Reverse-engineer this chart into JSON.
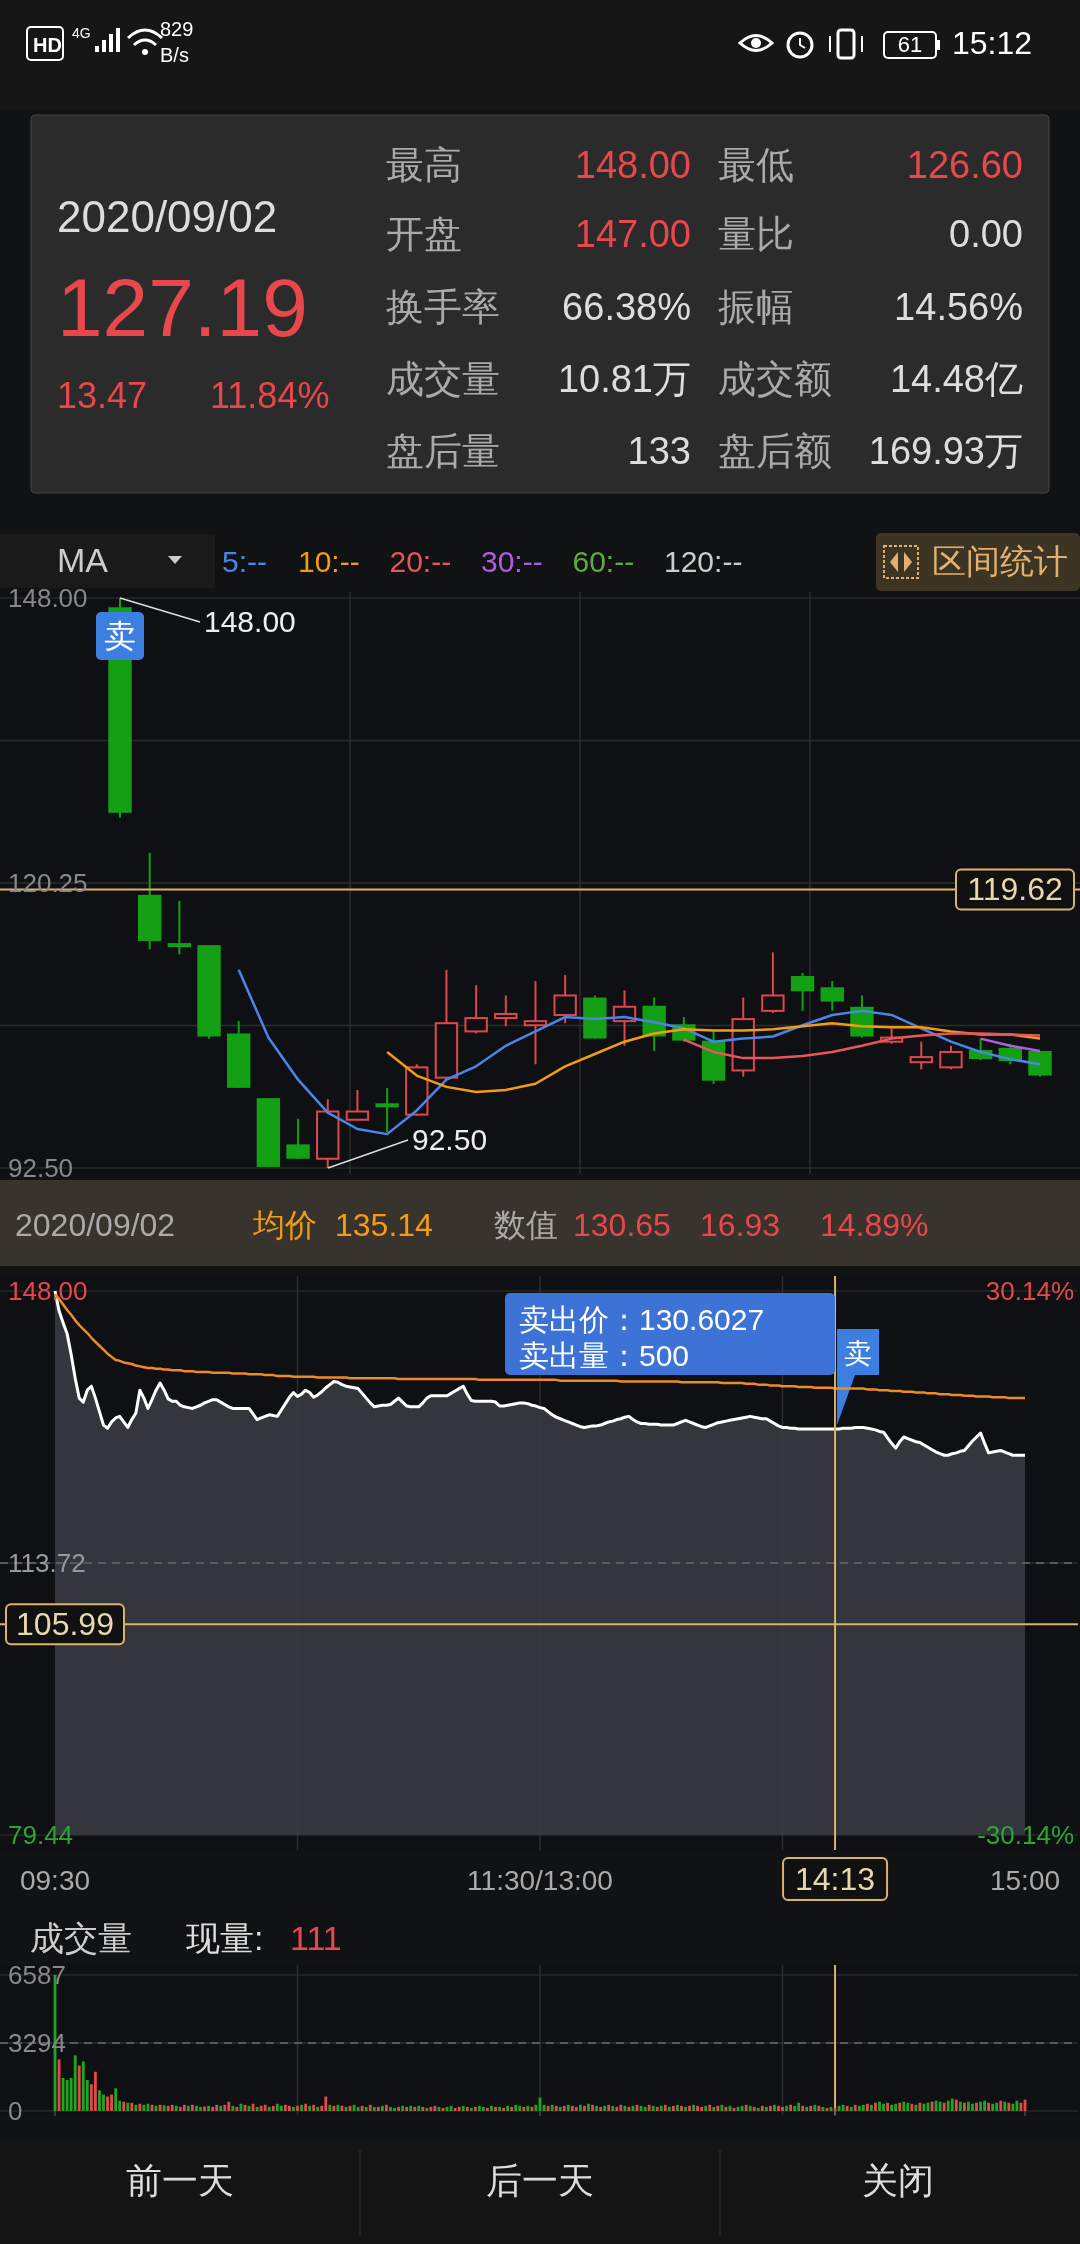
{
  "chart_data": [
    {
      "type": "other",
      "annotations": [
        "HD",
        "4G",
        "829",
        "B/s",
        "15:12",
        "61",
        "2020/09/02",
        "127.19",
        "13.47",
        "11.84%",
        "最高",
        "148.00",
        "最低",
        "126.60",
        "开盘",
        "147.00",
        "量比",
        "0.00",
        "换手率",
        "66.38%",
        "振幅",
        "14.56%",
        "成交量",
        "10.81万",
        "成交额",
        "14.48亿",
        "盘后量",
        "133",
        "盘后额",
        "169.93万",
        "前一天",
        "后一天",
        "关闭"
      ]
    },
    {
      "type": "candlestick",
      "legend_title": "MA",
      "legend": "top",
      "grid": true,
      "categories": [
        null,
        null,
        null,
        null,
        null,
        null,
        null,
        null,
        null,
        null,
        null,
        null,
        null,
        null,
        null,
        null,
        null,
        null,
        null,
        null,
        null,
        null,
        null,
        null,
        null,
        null,
        null,
        null,
        null,
        null,
        null,
        null
      ],
      "ohlc": [
        [
          147,
          148,
          126.6,
          127.19
        ],
        [
          119.0,
          123.2,
          113.8,
          114.7
        ],
        [
          114.3,
          118.5,
          113.3,
          114.1
        ],
        [
          114.1,
          114.1,
          105.1,
          105.4
        ],
        [
          105.5,
          106.8,
          100.3,
          100.4
        ],
        [
          99.2,
          99.2,
          92.6,
          92.7
        ],
        [
          94.7,
          97.3,
          93.4,
          93.5
        ],
        [
          93.4,
          99.2,
          92.5,
          98.0
        ],
        [
          97.2,
          100.1,
          97.1,
          98.0
        ],
        [
          98.7,
          100.3,
          96.0,
          98.5
        ],
        [
          97.7,
          102.6,
          97.6,
          102.3
        ],
        [
          101.3,
          111.8,
          101.1,
          106.6
        ],
        [
          105.8,
          110.3,
          105.6,
          107.1
        ],
        [
          107.1,
          109.3,
          106.3,
          107.5
        ],
        [
          106.4,
          110.7,
          102.6,
          106.8
        ],
        [
          107.4,
          111.3,
          106.6,
          109.3
        ],
        [
          109.0,
          109.3,
          105.1,
          105.2
        ],
        [
          106.8,
          109.8,
          104.4,
          108.2
        ],
        [
          108.2,
          109.1,
          103.9,
          105.4
        ],
        [
          106.4,
          107.2,
          104.8,
          105.0
        ],
        [
          104.8,
          105.8,
          100.7,
          101.1
        ],
        [
          102.0,
          109.1,
          101.4,
          107.0
        ],
        [
          107.8,
          113.5,
          107.6,
          109.3
        ],
        [
          111.1,
          111.5,
          107.8,
          109.8
        ],
        [
          110.0,
          110.7,
          107.8,
          108.8
        ],
        [
          108.1,
          109.3,
          105.2,
          105.4
        ],
        [
          104.8,
          106.1,
          104.6,
          105.2
        ],
        [
          102.8,
          104.8,
          102.1,
          103.3
        ],
        [
          102.3,
          104.4,
          102.1,
          103.8
        ],
        [
          103.9,
          105.1,
          103.0,
          103.2
        ],
        [
          104.1,
          104.6,
          102.6,
          103.0
        ],
        [
          103.8,
          103.9,
          101.4,
          101.6
        ]
      ],
      "colors": [
        "#14a014",
        "#14a014",
        "#14a014",
        "#14a014",
        "#14a014",
        "#14a014",
        "#14a014",
        "#e0474c",
        "#e0474c",
        "#14a014",
        "#e0474c",
        "#e0474c",
        "#e0474c",
        "#e0474c",
        "#e0474c",
        "#e0474c",
        "#14a014",
        "#e0474c",
        "#14a014",
        "#14a014",
        "#14a014",
        "#e0474c",
        "#e0474c",
        "#14a014",
        "#14a014",
        "#14a014",
        "#e0474c",
        "#e0474c",
        "#e0474c",
        "#14a014",
        "#14a014",
        "#14a014"
      ],
      "series": [
        {
          "name": "5:--",
          "type": "line",
          "color": "#4a86e8",
          "values": [
            null,
            null,
            null,
            null,
            111.8,
            105.2,
            101.1,
            97.9,
            96.3,
            95.8,
            98.1,
            101.1,
            102.4,
            104.4,
            105.8,
            107.2,
            107.0,
            107.2,
            106.7,
            106.1,
            104.8,
            105.1,
            105.3,
            106.4,
            107.4,
            107.8,
            107.4,
            106.1,
            104.8,
            103.8,
            103.1,
            102.6
          ]
        },
        {
          "name": "10:--",
          "type": "line",
          "color": "#f39c12",
          "values": [
            null,
            null,
            null,
            null,
            null,
            null,
            null,
            null,
            null,
            103.8,
            101.5,
            100.4,
            99.9,
            100.1,
            100.7,
            102.4,
            103.6,
            104.8,
            105.6,
            106.0,
            105.9,
            105.9,
            106.0,
            106.3,
            106.6,
            106.3,
            106.2,
            106.2,
            105.8,
            105.5,
            105.5,
            105.1
          ]
        },
        {
          "name": "20:--",
          "type": "line",
          "color": "#e8555a",
          "values": [
            null,
            null,
            null,
            null,
            null,
            null,
            null,
            null,
            null,
            null,
            null,
            null,
            null,
            null,
            null,
            null,
            null,
            null,
            null,
            105.0,
            103.8,
            103.2,
            103.2,
            103.4,
            103.8,
            104.4,
            105.1,
            105.4,
            105.6,
            105.6,
            105.5,
            105.4
          ]
        },
        {
          "name": "30:--",
          "type": "line",
          "color": "#b05ce0",
          "values": [
            null,
            null,
            null,
            null,
            null,
            null,
            null,
            null,
            null,
            null,
            null,
            null,
            null,
            null,
            null,
            null,
            null,
            null,
            null,
            null,
            null,
            null,
            null,
            null,
            null,
            null,
            null,
            null,
            null,
            105.1,
            104.4,
            103.9
          ]
        },
        {
          "name": "60:--",
          "type": "line",
          "color": "#63a83f",
          "values": [
            null,
            null,
            null,
            null,
            null,
            null,
            null,
            null,
            null,
            null,
            null,
            null,
            null,
            null,
            null,
            null,
            null,
            null,
            null,
            null,
            null,
            null,
            null,
            null,
            null,
            null,
            null,
            null,
            null,
            null,
            null,
            null
          ]
        },
        {
          "name": "120:--",
          "type": "line",
          "color": "#cccccc",
          "values": [
            null,
            null,
            null,
            null,
            null,
            null,
            null,
            null,
            null,
            null,
            null,
            null,
            null,
            null,
            null,
            null,
            null,
            null,
            null,
            null,
            null,
            null,
            null,
            null,
            null,
            null,
            null,
            null,
            null,
            null,
            null,
            null
          ]
        }
      ],
      "ylim": [
        92.5,
        148
      ],
      "yticks": [
        {
          "value": 148,
          "label": "148.00"
        },
        {
          "value": 134.125,
          "label": null
        },
        {
          "value": 120.25,
          "label": "120.25"
        },
        {
          "value": 106.375,
          "label": null
        },
        {
          "value": 92.5,
          "label": "92.50"
        }
      ],
      "ref_lines": [
        {
          "axis": "y",
          "value": 119.62,
          "label": "119.62",
          "color": "#d9b36c"
        }
      ],
      "annotations": [
        "148.00",
        "92.50",
        "卖",
        "区间统计"
      ]
    },
    {
      "type": "line",
      "grid": true,
      "categories": [
        "09:30",
        null,
        null,
        null,
        null,
        null,
        null,
        null,
        null,
        null,
        null,
        null,
        null,
        null,
        null,
        null,
        null,
        null,
        null,
        null,
        null,
        null,
        null,
        null,
        null,
        null,
        null,
        null,
        null,
        null,
        null,
        null,
        null,
        null,
        null,
        null,
        null,
        null,
        null,
        null,
        null,
        null,
        null,
        null,
        null,
        null,
        null,
        null,
        null,
        null,
        null,
        null,
        null,
        null,
        null,
        null,
        null,
        null,
        null,
        null,
        null,
        null,
        null,
        null,
        null,
        null,
        null,
        null,
        null,
        null,
        null,
        null,
        null,
        null,
        null,
        null,
        null,
        null,
        null,
        null,
        null,
        null,
        null,
        null,
        null,
        null,
        null,
        null,
        null,
        null,
        null,
        null,
        null,
        null,
        null,
        null,
        null,
        null,
        null,
        null,
        null,
        null,
        null,
        null,
        null,
        null,
        null,
        null,
        null,
        null,
        null,
        null,
        null,
        null,
        null,
        null,
        null,
        null,
        null,
        null,
        "11:30/13:00",
        null,
        null,
        null,
        null,
        null,
        null,
        null,
        null,
        null,
        null,
        null,
        null,
        null,
        null,
        null,
        null,
        null,
        null,
        null,
        null,
        null,
        null,
        null,
        null,
        null,
        null,
        null,
        null,
        null,
        null,
        null,
        null,
        null,
        null,
        null,
        null,
        null,
        null,
        null,
        null,
        null,
        null,
        null,
        null,
        null,
        null,
        null,
        null,
        null,
        null,
        null,
        null,
        null,
        null,
        null,
        null,
        null,
        null,
        null,
        null,
        null,
        null,
        null,
        null,
        null,
        null,
        null,
        null,
        null,
        null,
        null,
        null,
        "14:13",
        null,
        null,
        null,
        null,
        null,
        null,
        null,
        null,
        null,
        null,
        null,
        null,
        null,
        null,
        null,
        null,
        null,
        null,
        null,
        null,
        null,
        null,
        null,
        null,
        null,
        null,
        null,
        null,
        null,
        null,
        null,
        null,
        null,
        null,
        null,
        null,
        null,
        null,
        null,
        null,
        null,
        null,
        null,
        null,
        null,
        null,
        "15:00"
      ],
      "series": [
        {
          "type": "area",
          "color": "#ffffff",
          "values": [
            148.0,
            145.5,
            144.0,
            142.6,
            140.0,
            137.0,
            134.5,
            134.0,
            135.5,
            136.0,
            134.5,
            132.8,
            131.1,
            130.7,
            131.5,
            132.0,
            132.2,
            131.5,
            130.8,
            131.8,
            132.6,
            135.5,
            134.5,
            133.2,
            134.3,
            135.5,
            136.4,
            135.5,
            134.4,
            134.1,
            134.1,
            133.6,
            133.4,
            133.3,
            133.2,
            133.4,
            133.6,
            133.9,
            134.1,
            134.3,
            134.3,
            134.0,
            133.7,
            133.4,
            133.2,
            133.2,
            133.2,
            133.2,
            133.2,
            132.5,
            131.8,
            132.0,
            132.2,
            132.4,
            132.3,
            132.2,
            133.0,
            133.8,
            134.6,
            135.2,
            134.7,
            135.0,
            135.5,
            135.2,
            134.6,
            134.9,
            135.3,
            135.8,
            136.2,
            136.6,
            136.5,
            136.2,
            136.0,
            135.9,
            135.8,
            135.7,
            135.1,
            134.5,
            133.9,
            133.4,
            133.5,
            133.6,
            133.6,
            133.7,
            134.1,
            134.5,
            134.0,
            133.5,
            133.4,
            133.4,
            133.4,
            133.9,
            134.5,
            134.8,
            134.8,
            134.8,
            134.8,
            134.8,
            135.1,
            135.4,
            135.7,
            136.0,
            135.0,
            134.2,
            134.1,
            134.1,
            134.1,
            134.1,
            134.1,
            134.0,
            133.5,
            133.5,
            133.6,
            133.7,
            133.8,
            133.9,
            133.9,
            133.8,
            133.6,
            133.5,
            133.3,
            133.2,
            132.8,
            132.4,
            132.1,
            131.9,
            131.7,
            131.5,
            131.3,
            131.1,
            130.9,
            130.8,
            130.9,
            131.0,
            131.0,
            131.1,
            131.3,
            131.5,
            131.6,
            131.8,
            131.9,
            132.1,
            132.2,
            131.8,
            131.5,
            131.3,
            131.3,
            131.2,
            131.2,
            131.2,
            131.1,
            131.1,
            131.1,
            131.1,
            131.3,
            131.5,
            131.7,
            131.5,
            131.3,
            131.1,
            130.9,
            130.8,
            131.0,
            131.2,
            131.4,
            131.5,
            131.6,
            131.7,
            131.8,
            131.9,
            132.0,
            132.1,
            132.2,
            132.1,
            132.0,
            131.9,
            131.9,
            131.6,
            131.3,
            131.0,
            130.8,
            130.8,
            130.7,
            130.7,
            130.6,
            130.6,
            130.6,
            130.6,
            130.6,
            130.6,
            130.6,
            130.6,
            130.6,
            130.6,
            130.6,
            130.7,
            130.7,
            130.7,
            130.8,
            130.8,
            130.8,
            130.7,
            130.6,
            130.5,
            130.3,
            130.2,
            129.5,
            128.8,
            128.2,
            129.0,
            129.6,
            129.4,
            129.2,
            129.0,
            128.9,
            128.6,
            128.3,
            128.0,
            127.7,
            127.5,
            127.3,
            127.3,
            127.5,
            127.6,
            127.8,
            127.9,
            128.5,
            129.1,
            129.6,
            130.1,
            128.8,
            127.6,
            127.7,
            127.8,
            127.9,
            127.7,
            127.5,
            127.3,
            127.3,
            127.3,
            127.3
          ]
        },
        {
          "type": "line",
          "color": "#f08a24",
          "values": [
            147.6,
            147.0,
            146.3,
            145.6,
            145.0,
            144.3,
            143.7,
            143.2,
            142.7,
            142.1,
            141.6,
            141.1,
            140.6,
            140.1,
            139.7,
            139.3,
            139.2,
            139.0,
            138.9,
            138.8,
            138.6,
            138.5,
            138.4,
            138.3,
            138.3,
            138.2,
            138.2,
            138.1,
            138.1,
            138.0,
            138.0,
            138.0,
            137.9,
            137.9,
            137.9,
            137.8,
            137.8,
            137.8,
            137.8,
            137.7,
            137.7,
            137.7,
            137.7,
            137.7,
            137.6,
            137.6,
            137.6,
            137.6,
            137.5,
            137.5,
            137.5,
            137.5,
            137.4,
            137.4,
            137.4,
            137.3,
            137.3,
            137.3,
            137.3,
            137.2,
            137.2,
            137.2,
            137.2,
            137.2,
            137.2,
            137.1,
            137.1,
            137.1,
            137.1,
            137.1,
            137.1,
            137.1,
            137.1,
            137.0,
            137.0,
            137.0,
            137.0,
            137.0,
            137.0,
            137.0,
            137.0,
            137.0,
            137.0,
            137.0,
            137.0,
            136.9,
            136.9,
            136.9,
            136.9,
            136.9,
            136.9,
            136.9,
            136.9,
            136.9,
            136.9,
            136.9,
            136.9,
            136.9,
            136.9,
            136.9,
            136.9,
            136.9,
            136.9,
            136.9,
            136.9,
            136.8,
            136.8,
            136.8,
            136.8,
            136.8,
            136.8,
            136.8,
            136.8,
            136.8,
            136.8,
            136.8,
            136.8,
            136.8,
            136.8,
            136.8,
            136.8,
            136.8,
            136.8,
            136.8,
            136.8,
            136.7,
            136.7,
            136.7,
            136.7,
            136.7,
            136.7,
            136.7,
            136.7,
            136.7,
            136.7,
            136.7,
            136.7,
            136.7,
            136.7,
            136.7,
            136.6,
            136.6,
            136.6,
            136.6,
            136.6,
            136.6,
            136.6,
            136.6,
            136.6,
            136.6,
            136.6,
            136.6,
            136.6,
            136.6,
            136.6,
            136.5,
            136.5,
            136.5,
            136.5,
            136.5,
            136.5,
            136.5,
            136.5,
            136.5,
            136.5,
            136.4,
            136.4,
            136.4,
            136.4,
            136.4,
            136.4,
            136.3,
            136.3,
            136.3,
            136.2,
            136.2,
            136.2,
            136.1,
            136.1,
            136.1,
            136.0,
            136.0,
            136.0,
            136.0,
            135.9,
            135.9,
            135.9,
            135.9,
            135.8,
            135.8,
            135.8,
            135.8,
            135.8,
            135.7,
            135.7,
            135.7,
            135.7,
            135.7,
            135.7,
            135.7,
            135.7,
            135.6,
            135.6,
            135.6,
            135.5,
            135.5,
            135.5,
            135.4,
            135.4,
            135.4,
            135.3,
            135.3,
            135.3,
            135.2,
            135.2,
            135.2,
            135.1,
            135.1,
            135.1,
            135.0,
            135.0,
            135.0,
            134.9,
            134.9,
            134.9,
            134.8,
            134.8,
            134.8,
            134.7,
            134.7,
            134.7,
            134.7,
            134.6,
            134.6,
            134.6,
            134.6,
            134.5,
            134.5,
            134.5,
            134.5,
            134.5
          ]
        }
      ],
      "ylim": [
        79.44,
        148
      ],
      "yticks": [
        {
          "value": 148,
          "label": "148.00"
        },
        {
          "value": 113.72,
          "label": "113.72"
        },
        {
          "value": 79.44,
          "label": "79.44"
        }
      ],
      "y2lim": [
        -30.14,
        30.14
      ],
      "y2ticks": [
        {
          "value": 30.14,
          "label": "30.14%"
        },
        {
          "value": -30.14,
          "label": "-30.14%"
        }
      ],
      "ref_lines": [
        {
          "axis": "y",
          "value": 113.72,
          "color": "#5a5a5a",
          "line_style": "dashed"
        },
        {
          "axis": "y",
          "value": 105.99,
          "label": "105.99",
          "color": "#d9b36c"
        },
        {
          "axis": "x",
          "value": "14:13",
          "color": "#d9b36c"
        }
      ],
      "annotations": [
        "卖出价：130.6027",
        "卖出量：500",
        {
          "text": "卖",
          "x": "14:13",
          "y": 130.6
        },
        "2020/09/02",
        "均价",
        "135.14",
        "数值",
        "130.65",
        "16.93",
        "14.89%"
      ]
    },
    {
      "type": "bar",
      "title": "成交量",
      "grid": true,
      "tick_labels": "y",
      "categories": [
        "09:30",
        null,
        null,
        null,
        null,
        null,
        null,
        null,
        null,
        null,
        null,
        null,
        null,
        null,
        null,
        null,
        null,
        null,
        null,
        null,
        null,
        null,
        null,
        null,
        null,
        null,
        null,
        null,
        null,
        null,
        null,
        null,
        null,
        null,
        null,
        null,
        null,
        null,
        null,
        null,
        null,
        null,
        null,
        null,
        null,
        null,
        null,
        null,
        null,
        null,
        null,
        null,
        null,
        null,
        null,
        null,
        null,
        null,
        null,
        null,
        null,
        null,
        null,
        null,
        null,
        null,
        null,
        null,
        null,
        null,
        null,
        null,
        null,
        null,
        null,
        null,
        null,
        null,
        null,
        null,
        null,
        null,
        null,
        null,
        null,
        null,
        null,
        null,
        null,
        null,
        null,
        null,
        null,
        null,
        null,
        null,
        null,
        null,
        null,
        null,
        null,
        null,
        null,
        null,
        null,
        null,
        null,
        null,
        null,
        null,
        null,
        null,
        null,
        null,
        null,
        null,
        null,
        null,
        null,
        null,
        "11:30/13:00",
        null,
        null,
        null,
        null,
        null,
        null,
        null,
        null,
        null,
        null,
        null,
        null,
        null,
        null,
        null,
        null,
        null,
        null,
        null,
        null,
        null,
        null,
        null,
        null,
        null,
        null,
        null,
        null,
        null,
        null,
        null,
        null,
        null,
        null,
        null,
        null,
        null,
        null,
        null,
        null,
        null,
        null,
        null,
        null,
        null,
        null,
        null,
        null,
        null,
        null,
        null,
        null,
        null,
        null,
        null,
        null,
        null,
        null,
        null,
        null,
        null,
        null,
        null,
        null,
        null,
        null,
        null,
        null,
        null,
        null,
        null,
        null,
        "14:13",
        null,
        null,
        null,
        null,
        null,
        null,
        null,
        null,
        null,
        null,
        null,
        null,
        null,
        null,
        null,
        null,
        null,
        null,
        null,
        null,
        null,
        null,
        null,
        null,
        null,
        null,
        null,
        null,
        null,
        null,
        null,
        null,
        null,
        null,
        null,
        null,
        null,
        null,
        null,
        null,
        null,
        null,
        null,
        null,
        null,
        null,
        "15:00"
      ],
      "values": [
        6587,
        2500,
        1600,
        1500,
        1600,
        2700,
        2200,
        2400,
        1500,
        1300,
        1900,
        1000,
        800,
        700,
        800,
        1100,
        500,
        450,
        400,
        400,
        300,
        350,
        300,
        350,
        300,
        250,
        300,
        280,
        250,
        300,
        250,
        200,
        300,
        250,
        300,
        250,
        200,
        220,
        250,
        200,
        300,
        250,
        300,
        450,
        250,
        200,
        350,
        300,
        250,
        350,
        200,
        250,
        300,
        200,
        250,
        350,
        250,
        300,
        250,
        200,
        250,
        300,
        350,
        250,
        300,
        200,
        250,
        700,
        300,
        250,
        300,
        250,
        200,
        250,
        300,
        200,
        250,
        200,
        300,
        200,
        200,
        250,
        300,
        200,
        150,
        200,
        250,
        200,
        250,
        200,
        250,
        200,
        150,
        200,
        250,
        200,
        150,
        200,
        250,
        150,
        200,
        250,
        200,
        150,
        200,
        250,
        200,
        150,
        250,
        200,
        200,
        150,
        250,
        200,
        300,
        250,
        200,
        250,
        200,
        300,
        650,
        300,
        250,
        300,
        250,
        200,
        250,
        300,
        250,
        200,
        300,
        250,
        350,
        300,
        250,
        200,
        250,
        300,
        250,
        200,
        300,
        250,
        200,
        250,
        300,
        250,
        200,
        300,
        250,
        200,
        250,
        300,
        200,
        250,
        300,
        250,
        200,
        250,
        300,
        250,
        200,
        250,
        300,
        200,
        250,
        300,
        200,
        250,
        150,
        200,
        250,
        300,
        250,
        200,
        150,
        250,
        200,
        250,
        300,
        250,
        200,
        250,
        300,
        250,
        400,
        250,
        200,
        250,
        300,
        250,
        200,
        150,
        200,
        150,
        250,
        300,
        250,
        200,
        300,
        250,
        300,
        350,
        300,
        400,
        450,
        350,
        400,
        300,
        350,
        400,
        450,
        400,
        350,
        300,
        400,
        350,
        400,
        450,
        500,
        450,
        400,
        500,
        600,
        550,
        450,
        400,
        450,
        350,
        400,
        450,
        500,
        400,
        350,
        400,
        500,
        450,
        400,
        350,
        500,
        400,
        550
      ],
      "colors": [
        "#1fa51f",
        "#e04a4e",
        "#1fa51f",
        "#1fa51f",
        "#1fa51f",
        "#1fa51f",
        "#e04a4e",
        "#1fa51f",
        "#1fa51f",
        "#e04a4e",
        "#e04a4e",
        "#1fa51f",
        "#1fa51f",
        "#e04a4e",
        "#e04a4e",
        "#1fa51f",
        "#1fa51f",
        "#e04a4e",
        "#1fa51f",
        "#e04a4e",
        "#1fa51f",
        "#e04a4e",
        "#1fa51f",
        "#1fa51f",
        "#e04a4e",
        "#1fa51f",
        "#e04a4e",
        "#1fa51f",
        "#e04a4e",
        "#e04a4e",
        "#1fa51f",
        "#e04a4e",
        "#e04a4e",
        "#1fa51f",
        "#e04a4e",
        "#1fa51f",
        "#1fa51f",
        "#e04a4e",
        "#1fa51f",
        "#e04a4e",
        "#e04a4e",
        "#1fa51f",
        "#e04a4e",
        "#e04a4e",
        "#1fa51f",
        "#e04a4e",
        "#1fa51f",
        "#e04a4e",
        "#1fa51f",
        "#e04a4e",
        "#1fa51f",
        "#e04a4e",
        "#e04a4e",
        "#1fa51f",
        "#e04a4e",
        "#1fa51f",
        "#1fa51f",
        "#e04a4e",
        "#e04a4e",
        "#1fa51f",
        "#e04a4e",
        "#1fa51f",
        "#e04a4e",
        "#1fa51f",
        "#e04a4e",
        "#1fa51f",
        "#e04a4e",
        "#e04a4e",
        "#1fa51f",
        "#e04a4e",
        "#1fa51f",
        "#e04a4e",
        "#1fa51f",
        "#e04a4e",
        "#1fa51f",
        "#1fa51f",
        "#e04a4e",
        "#1fa51f",
        "#e04a4e",
        "#1fa51f",
        "#e04a4e",
        "#1fa51f",
        "#e04a4e",
        "#1fa51f",
        "#1fa51f",
        "#e04a4e",
        "#1fa51f",
        "#e04a4e",
        "#1fa51f",
        "#e04a4e",
        "#1fa51f",
        "#e04a4e",
        "#1fa51f",
        "#e04a4e",
        "#e04a4e",
        "#1fa51f",
        "#e04a4e",
        "#1fa51f",
        "#1fa51f",
        "#e04a4e",
        "#e04a4e",
        "#1fa51f",
        "#e04a4e",
        "#1fa51f",
        "#e04a4e",
        "#1fa51f",
        "#1fa51f",
        "#e04a4e",
        "#1fa51f",
        "#e04a4e",
        "#1fa51f",
        "#e04a4e",
        "#1fa51f",
        "#e04a4e",
        "#1fa51f",
        "#1fa51f",
        "#e04a4e",
        "#1fa51f",
        "#e04a4e",
        "#1fa51f",
        "#1fa51f",
        "#1fa51f",
        "#e04a4e",
        "#1fa51f",
        "#e04a4e",
        "#1fa51f",
        "#e04a4e",
        "#1fa51f",
        "#e04a4e",
        "#e04a4e",
        "#1fa51f",
        "#e04a4e",
        "#1fa51f",
        "#e04a4e",
        "#1fa51f",
        "#e04a4e",
        "#1fa51f",
        "#e04a4e",
        "#1fa51f",
        "#e04a4e",
        "#e04a4e",
        "#1fa51f",
        "#e04a4e",
        "#1fa51f",
        "#e04a4e",
        "#1fa51f",
        "#1fa51f",
        "#e04a4e",
        "#1fa51f",
        "#e04a4e",
        "#1fa51f",
        "#e04a4e",
        "#1fa51f",
        "#e04a4e",
        "#1fa51f",
        "#e04a4e",
        "#1fa51f",
        "#e04a4e",
        "#1fa51f",
        "#e04a4e",
        "#e04a4e",
        "#1fa51f",
        "#e04a4e",
        "#1fa51f",
        "#e04a4e",
        "#1fa51f",
        "#e04a4e",
        "#1fa51f",
        "#e04a4e",
        "#1fa51f",
        "#1fa51f",
        "#e04a4e",
        "#1fa51f",
        "#e04a4e",
        "#1fa51f",
        "#e04a4e",
        "#1fa51f",
        "#e04a4e",
        "#1fa51f",
        "#e04a4e",
        "#e04a4e",
        "#1fa51f",
        "#e04a4e",
        "#1fa51f",
        "#1fa51f",
        "#e04a4e",
        "#1fa51f",
        "#e04a4e",
        "#1fa51f",
        "#e04a4e",
        "#1fa51f",
        "#e04a4e",
        "#1fa51f",
        "#e04a4e",
        "#1fa51f",
        "#1fa51f",
        "#e04a4e",
        "#1fa51f",
        "#e04a4e",
        "#1fa51f",
        "#1fa51f",
        "#e04a4e",
        "#1fa51f",
        "#e04a4e",
        "#1fa51f",
        "#1fa51f",
        "#e04a4e",
        "#1fa51f",
        "#1fa51f",
        "#e04a4e",
        "#1fa51f",
        "#1fa51f",
        "#e04a4e",
        "#1fa51f",
        "#e04a4e",
        "#1fa51f",
        "#1fa51f",
        "#e04a4e",
        "#1fa51f",
        "#1fa51f",
        "#e04a4e",
        "#1fa51f",
        "#1fa51f",
        "#e04a4e",
        "#1fa51f",
        "#e04a4e",
        "#1fa51f",
        "#1fa51f",
        "#e04a4e",
        "#1fa51f",
        "#1fa51f",
        "#e04a4e",
        "#1fa51f",
        "#1fa51f",
        "#e04a4e",
        "#1fa51f",
        "#e04a4e",
        "#1fa51f",
        "#1fa51f",
        "#e04a4e",
        "#e04a4e"
      ],
      "ylim": [
        0,
        6587
      ],
      "yticks": [
        0,
        3294,
        6587
      ],
      "ref_lines": [
        {
          "axis": "y",
          "value": 3294,
          "color": "#5a5a5a",
          "line_style": "dashed"
        },
        {
          "axis": "x",
          "value": "14:13",
          "color": "#d9b36c"
        }
      ],
      "annotations": [
        "现量:",
        "111"
      ]
    }
  ]
}
